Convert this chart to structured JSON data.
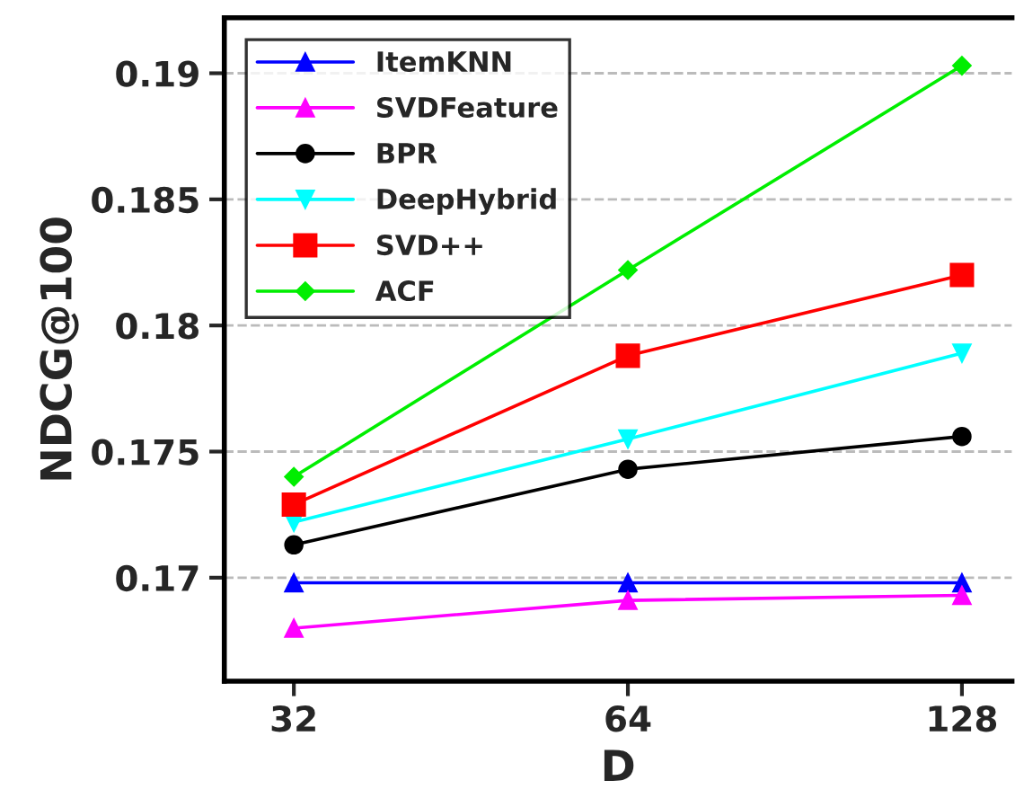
{
  "chart_data": {
    "type": "line",
    "xlabel": "D",
    "ylabel": "NDCG@100",
    "x": [
      32,
      64,
      128
    ],
    "log": "x",
    "xlim": [
      27.7,
      142
    ],
    "xticks": [
      32,
      64,
      128
    ],
    "ylim": [
      0.1659,
      0.1922
    ],
    "yticks": [
      0.17,
      0.175,
      0.18,
      0.185,
      0.19
    ],
    "grid": "y",
    "legend": "top left",
    "series": [
      {
        "name": "ItemKNN",
        "color": "#0000ff",
        "marker": "triangle",
        "values": [
          0.1698,
          0.1698,
          0.1698
        ]
      },
      {
        "name": "SVDFeature",
        "color": "#ff00ff",
        "marker": "triangle",
        "values": [
          0.168,
          0.1691,
          0.1693
        ]
      },
      {
        "name": "BPR",
        "color": "#000000",
        "marker": "circle",
        "values": [
          0.1713,
          0.1743,
          0.1756
        ]
      },
      {
        "name": "DeepHybrid",
        "color": "#00ffff",
        "marker": "triangle_down",
        "values": [
          0.1722,
          0.1755,
          0.1789
        ]
      },
      {
        "name": "SVD++",
        "color": "#ff0000",
        "marker": "square",
        "values": [
          0.1729,
          0.1788,
          0.182
        ]
      },
      {
        "name": "ACF",
        "color": "#00ee00",
        "marker": "diamond",
        "values": [
          0.174,
          0.1822,
          0.1903
        ]
      }
    ]
  }
}
